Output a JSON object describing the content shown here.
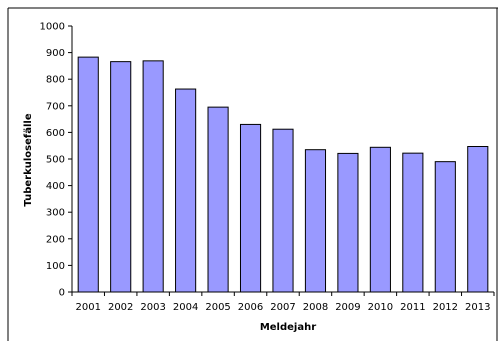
{
  "chart_data": {
    "type": "bar",
    "title_fragment": "",
    "xlabel": "Meldejahr",
    "ylabel": "Tuberkulosefälle",
    "categories": [
      "2001",
      "2002",
      "2003",
      "2004",
      "2005",
      "2006",
      "2007",
      "2008",
      "2009",
      "2010",
      "2011",
      "2012",
      "2013"
    ],
    "values": [
      883,
      866,
      869,
      763,
      695,
      630,
      612,
      535,
      521,
      544,
      522,
      490,
      547
    ],
    "ylim": [
      0,
      1000
    ],
    "yticks": [
      0,
      100,
      200,
      300,
      400,
      500,
      600,
      700,
      800,
      900,
      1000
    ],
    "bar_color": "#9999ff",
    "bar_stroke": "#000000",
    "grid": false,
    "legend": "none"
  }
}
